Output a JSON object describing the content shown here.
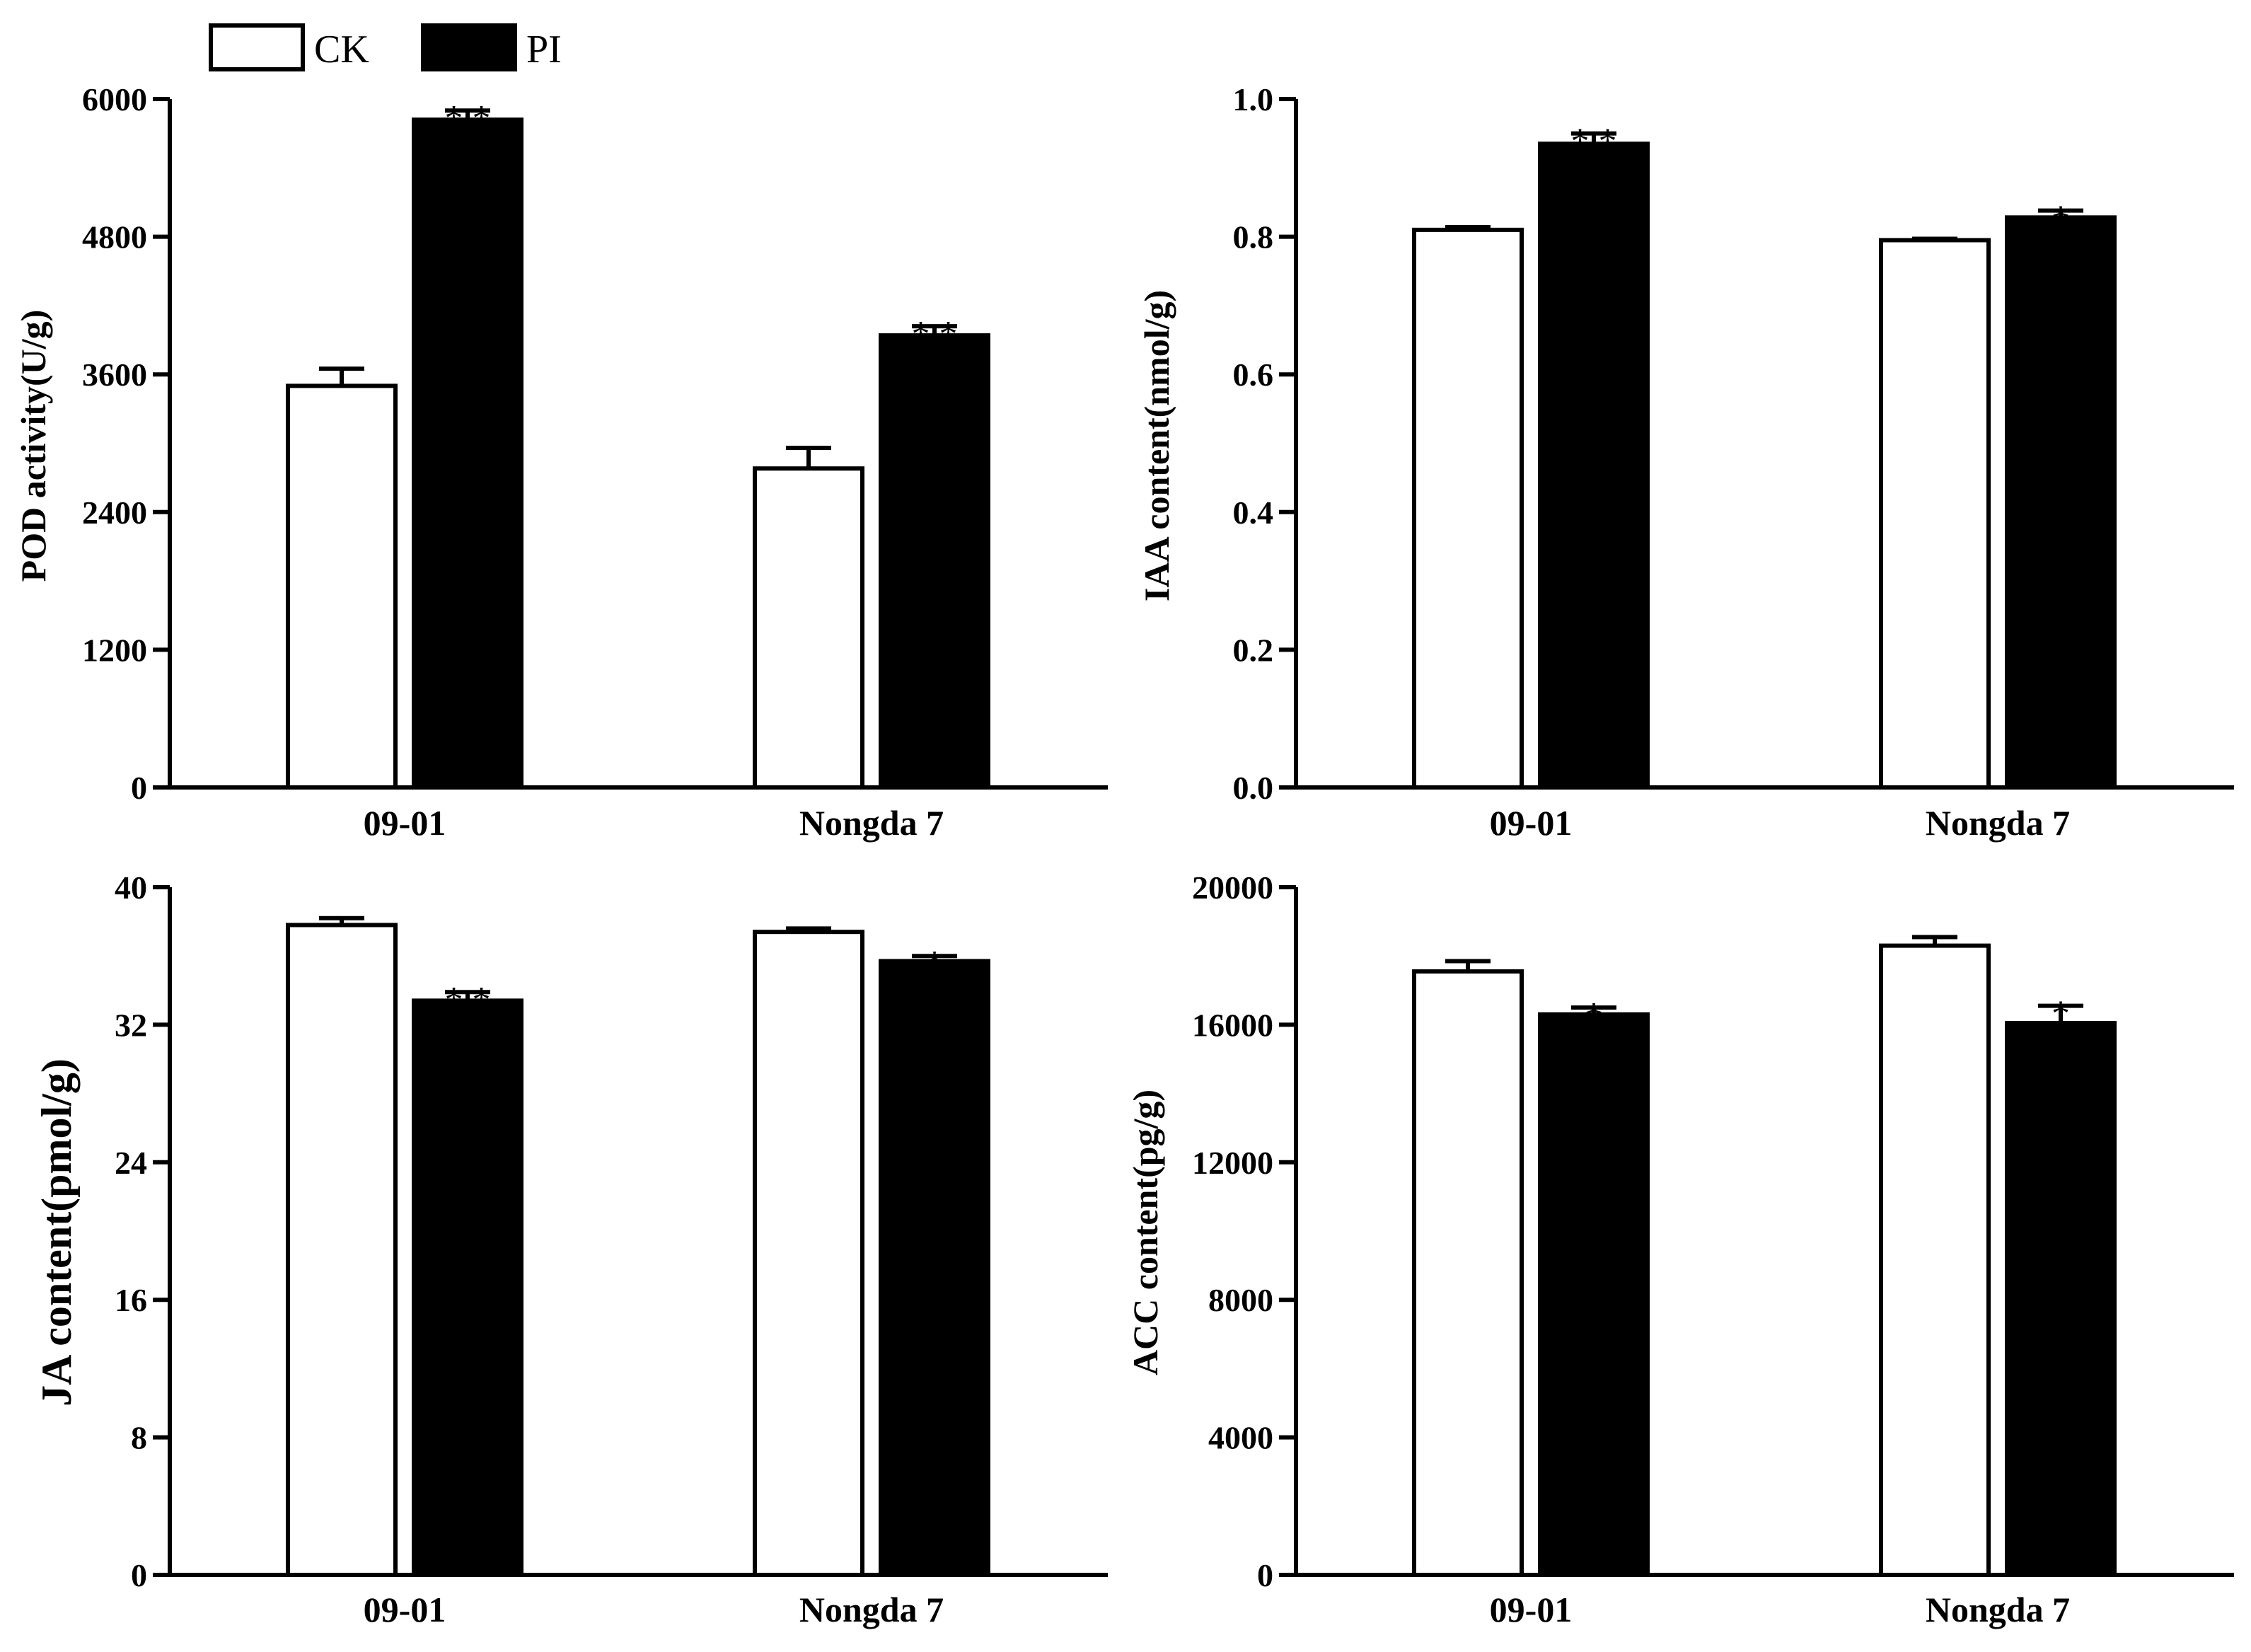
{
  "legend": {
    "items": [
      {
        "label": "CK",
        "color": "#ffffff"
      },
      {
        "label": "PI",
        "color": "#000000"
      }
    ]
  },
  "chart_data": [
    {
      "type": "bar",
      "ylabel": "POD activity(U/g)",
      "categories": [
        "09-01",
        "Nongda 7"
      ],
      "ylim": [
        0,
        6000
      ],
      "yticks": [
        0,
        1200,
        2400,
        3600,
        4800,
        6000
      ],
      "ytick_labels": [
        "0",
        "1200",
        "2400",
        "3600",
        "4800",
        "6000"
      ],
      "series": [
        {
          "name": "CK",
          "values": [
            3500,
            2780
          ],
          "errors": [
            150,
            180
          ],
          "sig": [
            "",
            ""
          ]
        },
        {
          "name": "PI",
          "values": [
            5820,
            3940
          ],
          "errors": [
            80,
            80
          ],
          "sig": [
            "* *",
            "* *"
          ]
        }
      ]
    },
    {
      "type": "bar",
      "ylabel": "IAA content(nmol/g)",
      "categories": [
        "09-01",
        "Nongda 7"
      ],
      "ylim": [
        0,
        1.0
      ],
      "yticks": [
        0,
        0.2,
        0.4,
        0.6,
        0.8,
        1.0
      ],
      "ytick_labels": [
        "0.0",
        "0.2",
        "0.4",
        "0.6",
        "0.8",
        "1.0"
      ],
      "series": [
        {
          "name": "CK",
          "values": [
            0.81,
            0.795
          ],
          "errors": [
            0.004,
            0.002
          ],
          "sig": [
            "",
            ""
          ]
        },
        {
          "name": "PI",
          "values": [
            0.935,
            0.828
          ],
          "errors": [
            0.015,
            0.01
          ],
          "sig": [
            "* *",
            "*"
          ]
        }
      ]
    },
    {
      "type": "bar",
      "ylabel": "JA content(pmol/g)",
      "categories": [
        "09-01",
        "Nongda 7"
      ],
      "ylim": [
        0,
        40
      ],
      "yticks": [
        0,
        8,
        16,
        24,
        32,
        40
      ],
      "ytick_labels": [
        "0",
        "8",
        "16",
        "24",
        "32",
        "40"
      ],
      "series": [
        {
          "name": "CK",
          "values": [
            37.8,
            37.4
          ],
          "errors": [
            0.4,
            0.2
          ],
          "sig": [
            "",
            ""
          ]
        },
        {
          "name": "PI",
          "values": [
            33.4,
            35.7
          ],
          "errors": [
            0.5,
            0.3
          ],
          "sig": [
            "* *",
            "*"
          ]
        }
      ]
    },
    {
      "type": "bar",
      "ylabel": "ACC content(pg/g)",
      "categories": [
        "09-01",
        "Nongda 7"
      ],
      "ylim": [
        0,
        20000
      ],
      "yticks": [
        0,
        4000,
        8000,
        12000,
        16000,
        20000
      ],
      "ytick_labels": [
        "0",
        "4000",
        "8000",
        "12000",
        "16000",
        "20000"
      ],
      "series": [
        {
          "name": "CK",
          "values": [
            17550,
            18300
          ],
          "errors": [
            300,
            250
          ],
          "sig": [
            "",
            ""
          ]
        },
        {
          "name": "PI",
          "values": [
            16300,
            16050
          ],
          "errors": [
            200,
            500
          ],
          "sig": [
            "*",
            "*"
          ]
        }
      ]
    }
  ]
}
